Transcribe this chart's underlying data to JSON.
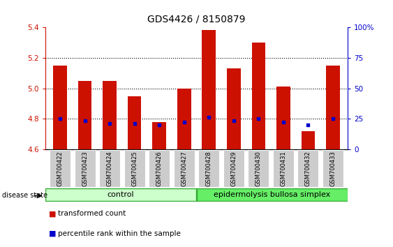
{
  "title": "GDS4426 / 8150879",
  "samples": [
    "GSM700422",
    "GSM700423",
    "GSM700424",
    "GSM700425",
    "GSM700426",
    "GSM700427",
    "GSM700428",
    "GSM700429",
    "GSM700430",
    "GSM700431",
    "GSM700432",
    "GSM700433"
  ],
  "bar_tops": [
    5.15,
    5.05,
    5.05,
    4.95,
    4.78,
    5.0,
    5.38,
    5.13,
    5.3,
    5.01,
    4.72,
    5.15
  ],
  "percentile_values": [
    4.8,
    4.79,
    4.77,
    4.77,
    4.76,
    4.78,
    4.81,
    4.79,
    4.8,
    4.78,
    4.76,
    4.8
  ],
  "bar_base": 4.6,
  "ylim_left": [
    4.6,
    5.4
  ],
  "ylim_right": [
    0,
    100
  ],
  "yticks_left": [
    4.6,
    4.8,
    5.0,
    5.2,
    5.4
  ],
  "yticks_right": [
    0,
    25,
    50,
    75,
    100
  ],
  "ytick_labels_right": [
    "0",
    "25",
    "50",
    "75",
    "100%"
  ],
  "bar_color": "#cc1100",
  "percentile_color": "#0000cc",
  "grid_lines": [
    4.8,
    5.0,
    5.2
  ],
  "group1_label": "control",
  "group2_label": "epidermolysis bullosa simplex",
  "group1_count": 6,
  "group2_count": 6,
  "disease_state_label": "disease state",
  "legend1": "transformed count",
  "legend2": "percentile rank within the sample",
  "group1_color": "#ccffcc",
  "group2_color": "#66ee66",
  "group_border_color": "#33aa33",
  "xlabel_bg_color": "#cccccc",
  "title_fontsize": 10,
  "axis_tick_color_left": "#cc1100",
  "axis_tick_color_right": "#0000cc",
  "bar_width": 0.55,
  "xlim": [
    -0.6,
    11.6
  ]
}
